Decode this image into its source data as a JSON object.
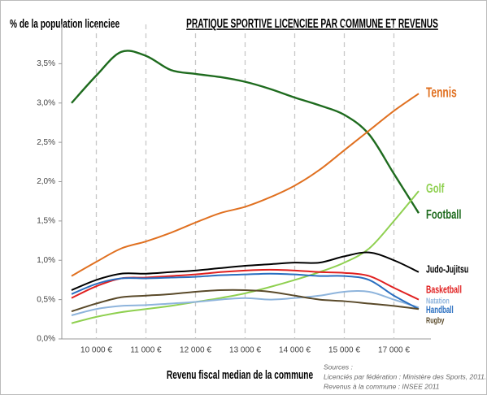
{
  "chart_data": {
    "type": "line",
    "title": "PRATIQUE SPORTIVE LICENCIEE PAR COMMUNE ET REVENUS",
    "y_label": "% de la population licenciee",
    "x_label": "Revenu fiscal median de la commune",
    "sources": [
      "Sources :",
      "Licenciés par fédération : Ministère des Sports, 2011.",
      "Revenus à la commune : INSEE 2011"
    ],
    "categories": [
      null,
      "10 000 €",
      null,
      "11 000 €",
      null,
      "12 000 €",
      null,
      "13 000 €",
      null,
      "14 000 €",
      null,
      "15 000 €",
      null,
      "17 000 €",
      null
    ],
    "ylim": [
      0,
      4.0
    ],
    "yticks": [
      {
        "value": 0,
        "label": "0,0%"
      },
      {
        "value": 0.5,
        "label": "0,5%"
      },
      {
        "value": 1.0,
        "label": "1,0%"
      },
      {
        "value": 1.5,
        "label": "1,5%"
      },
      {
        "value": 2.0,
        "label": "2,0%"
      },
      {
        "value": 2.5,
        "label": "2,5%"
      },
      {
        "value": 3.0,
        "label": "3,0%"
      },
      {
        "value": 3.5,
        "label": "3,5%"
      }
    ],
    "series": [
      {
        "name": "Football",
        "color": "#1e6b1e",
        "values": [
          3.0,
          3.35,
          3.65,
          3.6,
          3.42,
          3.37,
          3.33,
          3.27,
          3.18,
          3.07,
          2.97,
          2.85,
          2.6,
          2.1,
          1.6
        ]
      },
      {
        "name": "Tennis",
        "color": "#e07020",
        "values": [
          0.8,
          0.98,
          1.15,
          1.24,
          1.35,
          1.48,
          1.6,
          1.68,
          1.8,
          1.95,
          2.15,
          2.4,
          2.65,
          2.9,
          3.12
        ]
      },
      {
        "name": "Golf",
        "color": "#8fd050",
        "values": [
          0.2,
          0.28,
          0.34,
          0.38,
          0.42,
          0.47,
          0.52,
          0.58,
          0.66,
          0.75,
          0.85,
          0.97,
          1.15,
          1.5,
          1.88
        ]
      },
      {
        "name": "Judo-Jujitsu",
        "color": "#000000",
        "values": [
          0.62,
          0.75,
          0.83,
          0.83,
          0.85,
          0.87,
          0.9,
          0.93,
          0.95,
          0.97,
          0.97,
          1.05,
          1.1,
          1.0,
          0.85
        ]
      },
      {
        "name": "Basketball",
        "color": "#e02020",
        "values": [
          0.52,
          0.67,
          0.77,
          0.78,
          0.8,
          0.82,
          0.85,
          0.87,
          0.88,
          0.87,
          0.85,
          0.84,
          0.8,
          0.65,
          0.5
        ]
      },
      {
        "name": "Natation",
        "color": "#8eb4dc",
        "values": [
          0.3,
          0.38,
          0.42,
          0.43,
          0.45,
          0.47,
          0.5,
          0.52,
          0.5,
          0.52,
          0.55,
          0.6,
          0.6,
          0.5,
          0.4
        ]
      },
      {
        "name": "Handball",
        "color": "#2a6fc0",
        "values": [
          0.57,
          0.7,
          0.77,
          0.77,
          0.78,
          0.79,
          0.81,
          0.82,
          0.83,
          0.82,
          0.8,
          0.8,
          0.75,
          0.55,
          0.38
        ]
      },
      {
        "name": "Rugby",
        "color": "#5a4a2a",
        "values": [
          0.35,
          0.45,
          0.53,
          0.55,
          0.57,
          0.6,
          0.62,
          0.62,
          0.6,
          0.55,
          0.5,
          0.48,
          0.45,
          0.42,
          0.38
        ]
      }
    ]
  }
}
